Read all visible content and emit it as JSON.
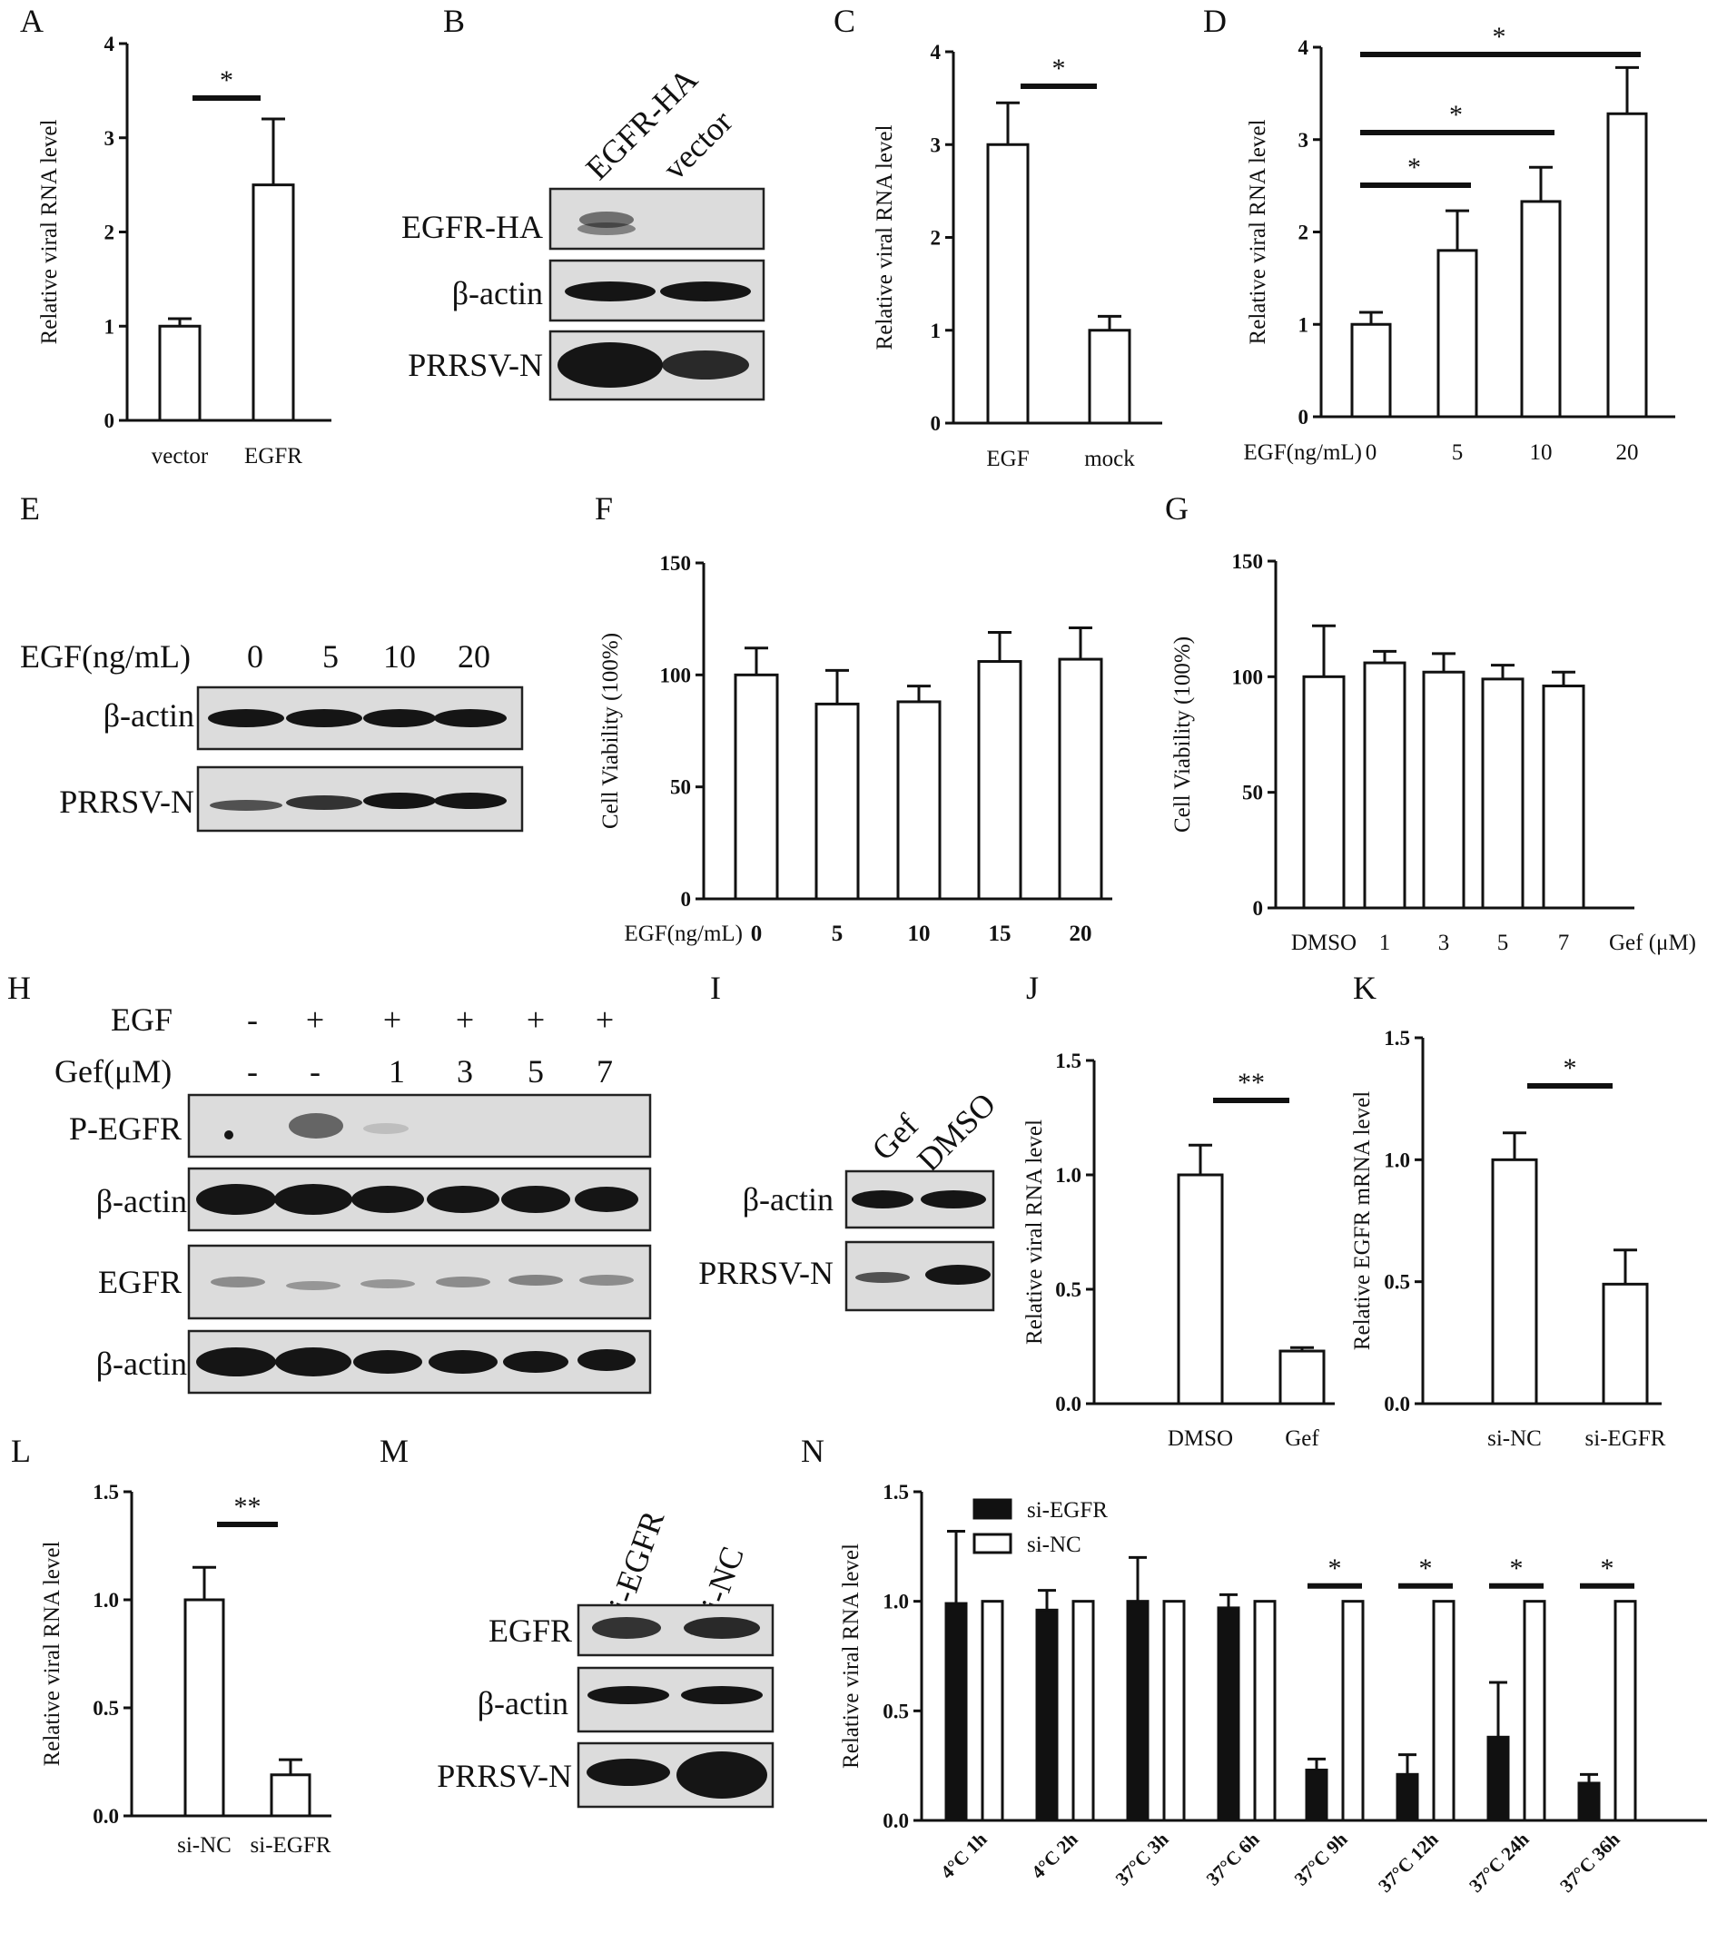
{
  "panels": {
    "A": {
      "letter": "A",
      "chart_data": {
        "type": "bar",
        "ylabel": "Relative viral RNA level",
        "ylim": [
          0,
          4
        ],
        "yticks": [
          "0",
          "1",
          "2",
          "3",
          "4"
        ],
        "categories": [
          "vector",
          "EGFR"
        ],
        "values": [
          1.0,
          2.5
        ],
        "errors": [
          0.08,
          0.7
        ],
        "significance": [
          {
            "from": 0,
            "to": 1,
            "label": "*"
          }
        ]
      }
    },
    "B": {
      "letter": "B",
      "lanes": [
        "EGFR-HA",
        "vector"
      ],
      "rows": [
        "EGFR-HA",
        "β-actin",
        "PRRSV-N"
      ]
    },
    "C": {
      "letter": "C",
      "chart_data": {
        "type": "bar",
        "ylabel": "Relative viral RNA level",
        "ylim": [
          0,
          4
        ],
        "yticks": [
          "0",
          "1",
          "2",
          "3",
          "4"
        ],
        "categories": [
          "EGF",
          "mock"
        ],
        "values": [
          3.0,
          1.0
        ],
        "errors": [
          0.45,
          0.15
        ],
        "significance": [
          {
            "from": 0,
            "to": 1,
            "label": "*"
          }
        ]
      }
    },
    "D": {
      "letter": "D",
      "chart_data": {
        "type": "bar",
        "ylabel": "Relative viral RNA level",
        "xprefix": "EGF(ng/mL)",
        "ylim": [
          0,
          4
        ],
        "yticks": [
          "0",
          "1",
          "2",
          "3",
          "4"
        ],
        "categories": [
          "0",
          "5",
          "10",
          "20"
        ],
        "values": [
          1.0,
          1.8,
          2.33,
          3.28
        ],
        "errors": [
          0.13,
          0.43,
          0.37,
          0.5
        ],
        "significance": [
          {
            "from": 0,
            "to": 1,
            "label": "*"
          },
          {
            "from": 0,
            "to": 2,
            "label": "*"
          },
          {
            "from": 0,
            "to": 3,
            "label": "*"
          }
        ]
      }
    },
    "E": {
      "letter": "E",
      "header_label": "EGF(ng/mL)",
      "lanes": [
        "0",
        "5",
        "10",
        "20"
      ],
      "rows": [
        "β-actin",
        "PRRSV-N"
      ]
    },
    "F": {
      "letter": "F",
      "chart_data": {
        "type": "bar",
        "ylabel": "Cell Viability (100%)",
        "xprefix": "EGF(ng/mL)",
        "ylim": [
          0,
          150
        ],
        "yticks": [
          "0",
          "50",
          "100",
          "150"
        ],
        "categories": [
          "0",
          "5",
          "10",
          "15",
          "20"
        ],
        "values": [
          100,
          87,
          88,
          106,
          107
        ],
        "errors": [
          12,
          15,
          7,
          13,
          14
        ]
      }
    },
    "G": {
      "letter": "G",
      "chart_data": {
        "type": "bar",
        "ylabel": "Cell Viability (100%)",
        "xsuffix": "Gef (μM)",
        "ylim": [
          0,
          150
        ],
        "yticks": [
          "0",
          "50",
          "100",
          "150"
        ],
        "categories": [
          "DMSO",
          "1",
          "3",
          "5",
          "7"
        ],
        "values": [
          100,
          106,
          102,
          99,
          96
        ],
        "errors": [
          22,
          5,
          8,
          6,
          6
        ]
      }
    },
    "H": {
      "letter": "H",
      "row1_label": "EGF",
      "row1": [
        "-",
        "+",
        "+",
        "+",
        "+",
        "+"
      ],
      "row2_label": "Gef(μM)",
      "row2": [
        "-",
        "-",
        "1",
        "3",
        "5",
        "7"
      ],
      "rows": [
        "P-EGFR",
        "β-actin",
        "EGFR",
        "β-actin"
      ]
    },
    "I": {
      "letter": "I",
      "lanes": [
        "Gef",
        "DMSO"
      ],
      "rows": [
        "β-actin",
        "PRRSV-N"
      ]
    },
    "J": {
      "letter": "J",
      "chart_data": {
        "type": "bar",
        "ylabel": "Relative viral RNA level",
        "ylim": [
          0,
          1.5
        ],
        "yticks": [
          "0.0",
          "0.5",
          "1.0",
          "1.5"
        ],
        "categories": [
          "DMSO",
          "Gef"
        ],
        "values": [
          1.0,
          0.23
        ],
        "errors": [
          0.13,
          0.015
        ],
        "significance": [
          {
            "from": 0,
            "to": 1,
            "label": "**"
          }
        ]
      }
    },
    "K": {
      "letter": "K",
      "chart_data": {
        "type": "bar",
        "ylabel": "Relative EGFR mRNA level",
        "ylim": [
          0,
          1.5
        ],
        "yticks": [
          "0.0",
          "0.5",
          "1.0",
          "1.5"
        ],
        "categories": [
          "si-NC",
          "si-EGFR"
        ],
        "values": [
          1.0,
          0.49
        ],
        "errors": [
          0.11,
          0.14
        ],
        "significance": [
          {
            "from": 0,
            "to": 1,
            "label": "*"
          }
        ]
      }
    },
    "L": {
      "letter": "L",
      "chart_data": {
        "type": "bar",
        "ylabel": "Relative viral RNA level",
        "ylim": [
          0,
          1.5
        ],
        "yticks": [
          "0.0",
          "0.5",
          "1.0",
          "1.5"
        ],
        "categories": [
          "si-NC",
          "si-EGFR"
        ],
        "values": [
          1.0,
          0.19
        ],
        "errors": [
          0.15,
          0.07
        ],
        "significance": [
          {
            "from": 0,
            "to": 1,
            "label": "**"
          }
        ]
      }
    },
    "M": {
      "letter": "M",
      "lanes": [
        "si-EGFR",
        "si-NC"
      ],
      "rows": [
        "EGFR",
        "β-actin",
        "PRRSV-N"
      ]
    },
    "N": {
      "letter": "N",
      "chart_data": {
        "type": "bar",
        "ylabel": "Relative viral RNA level",
        "ylim": [
          0,
          1.5
        ],
        "yticks": [
          "0.0",
          "0.5",
          "1.0",
          "1.5"
        ],
        "legend_position": "top-left",
        "categories": [
          "4°C 1h",
          "4°C 2h",
          "37°C 3h",
          "37°C 6h",
          "37°C 9h",
          "37°C 12h",
          "37°C 24h",
          "37°C 36h"
        ],
        "series": [
          {
            "name": "si-EGFR",
            "fill": "#111111",
            "values": [
              0.99,
              0.96,
              1.0,
              0.97,
              0.23,
              0.21,
              0.38,
              0.17
            ],
            "errors": [
              0.33,
              0.09,
              0.2,
              0.06,
              0.05,
              0.09,
              0.25,
              0.04
            ]
          },
          {
            "name": "si-NC",
            "fill": "#ffffff",
            "values": [
              1.0,
              1.0,
              1.0,
              1.0,
              1.0,
              1.0,
              1.0,
              1.0
            ],
            "errors": [
              0,
              0,
              0,
              0,
              0,
              0,
              0,
              0
            ]
          }
        ],
        "significance": [
          {
            "category": 4,
            "label": "*"
          },
          {
            "category": 5,
            "label": "*"
          },
          {
            "category": 6,
            "label": "*"
          },
          {
            "category": 7,
            "label": "*"
          }
        ]
      }
    }
  }
}
